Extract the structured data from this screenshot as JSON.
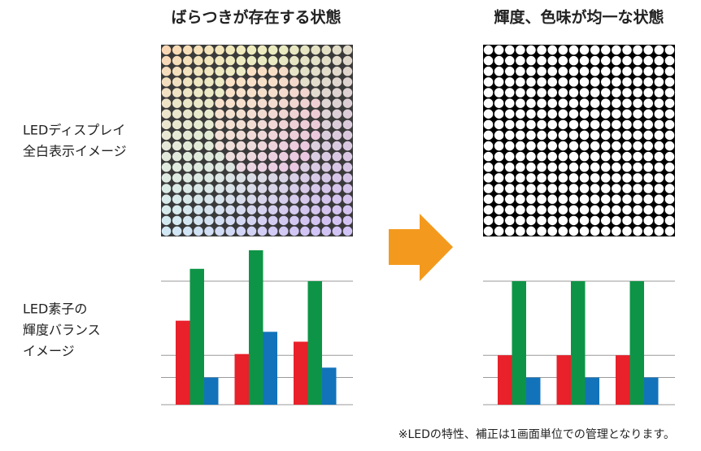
{
  "titles": {
    "left": "ばらつきが存在する状態",
    "right": "輝度、色味が均一な状態"
  },
  "row_labels": [
    [
      "LEDディスプレイ",
      "全白表示イメージ"
    ],
    [
      "LED素子の",
      "輝度バランス",
      "イメージ"
    ]
  ],
  "note": "※LEDの特性、補正は1画面単位での管理となります。",
  "chart_data": [
    {
      "type": "bar",
      "categories": [
        null,
        null,
        null
      ],
      "series": [
        {
          "color": "#e8212a",
          "values": [
            68,
            41,
            51
          ]
        },
        {
          "color": "#0e9447",
          "values": [
            110,
            125,
            100
          ]
        },
        {
          "color": "#1273bb",
          "values": [
            22,
            59,
            30
          ]
        }
      ],
      "ylim": [
        0,
        125
      ],
      "yticks": [
        22,
        40,
        100
      ],
      "grid": true
    },
    {
      "type": "bar",
      "categories": [
        null,
        null,
        null
      ],
      "series": [
        {
          "color": "#e8212a",
          "values": [
            40,
            40,
            40
          ]
        },
        {
          "color": "#0e9447",
          "values": [
            100,
            100,
            100
          ]
        },
        {
          "color": "#1273bb",
          "values": [
            22,
            22,
            22
          ]
        }
      ],
      "ylim": [
        0,
        125
      ],
      "yticks": [
        22,
        40,
        100
      ],
      "grid": true
    }
  ]
}
